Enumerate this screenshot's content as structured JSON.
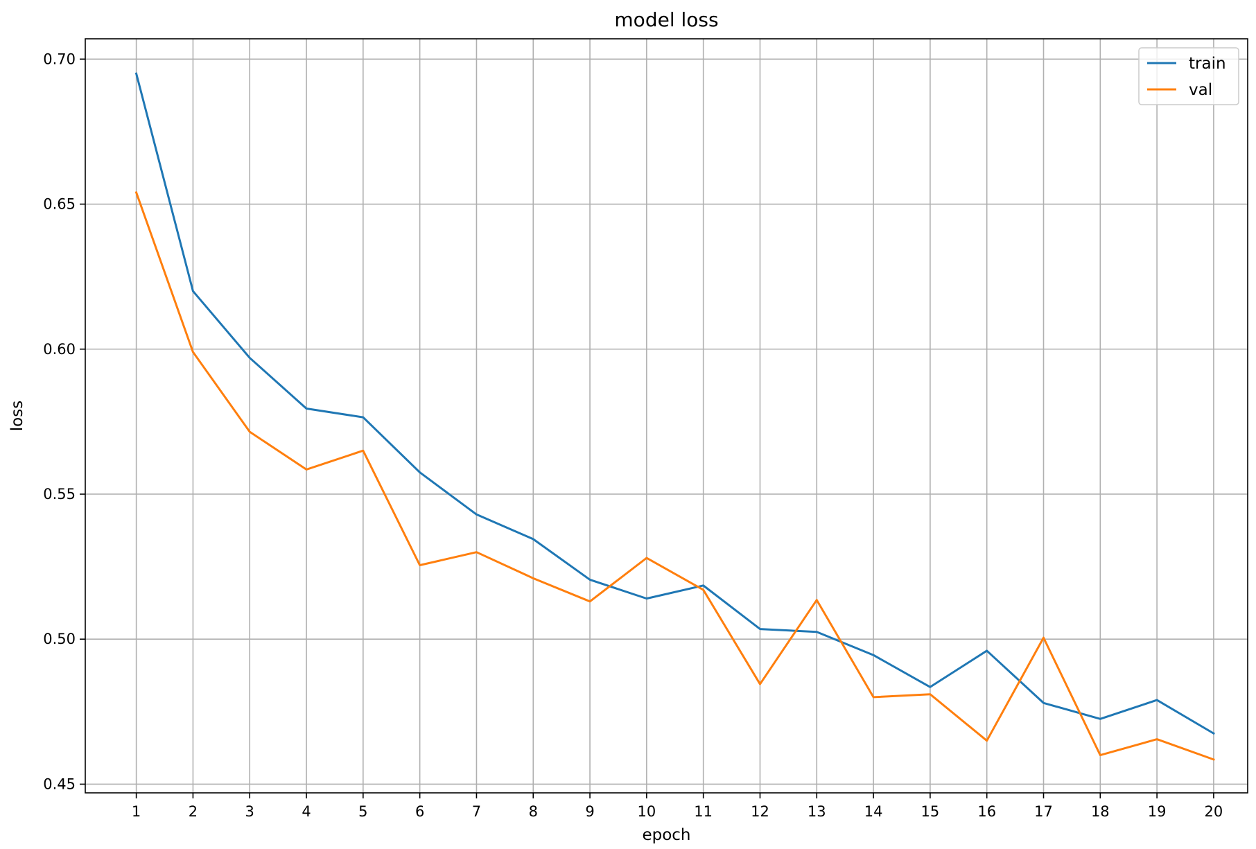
{
  "chart_data": {
    "type": "line",
    "title": "model loss",
    "xlabel": "epoch",
    "ylabel": "loss",
    "x": [
      1,
      2,
      3,
      4,
      5,
      6,
      7,
      8,
      9,
      10,
      11,
      12,
      13,
      14,
      15,
      16,
      17,
      18,
      19,
      20
    ],
    "x_tick_labels": [
      "1",
      "2",
      "3",
      "4",
      "5",
      "6",
      "7",
      "8",
      "9",
      "10",
      "11",
      "12",
      "13",
      "14",
      "15",
      "16",
      "17",
      "18",
      "19",
      "20"
    ],
    "y_ticks": [
      0.45,
      0.5,
      0.55,
      0.6,
      0.65,
      0.7
    ],
    "y_tick_labels": [
      "0.45",
      "0.50",
      "0.55",
      "0.60",
      "0.65",
      "0.70"
    ],
    "xlim": [
      0.1,
      20.6
    ],
    "ylim": [
      0.447,
      0.707
    ],
    "grid": true,
    "legend_position": "top-right",
    "series": [
      {
        "name": "train",
        "color": "#1f77b4",
        "values": [
          0.695,
          0.62,
          0.597,
          0.5795,
          0.5765,
          0.5575,
          0.543,
          0.5345,
          0.5205,
          0.514,
          0.5185,
          0.5035,
          0.5025,
          0.4945,
          0.4835,
          0.496,
          0.478,
          0.4725,
          0.479,
          0.4675
        ]
      },
      {
        "name": "val",
        "color": "#ff7f0e",
        "values": [
          0.654,
          0.599,
          0.5715,
          0.5585,
          0.565,
          0.5255,
          0.53,
          0.521,
          0.513,
          0.528,
          0.517,
          0.4845,
          0.5135,
          0.48,
          0.481,
          0.465,
          0.5005,
          0.46,
          0.4655,
          0.4585
        ]
      }
    ]
  }
}
